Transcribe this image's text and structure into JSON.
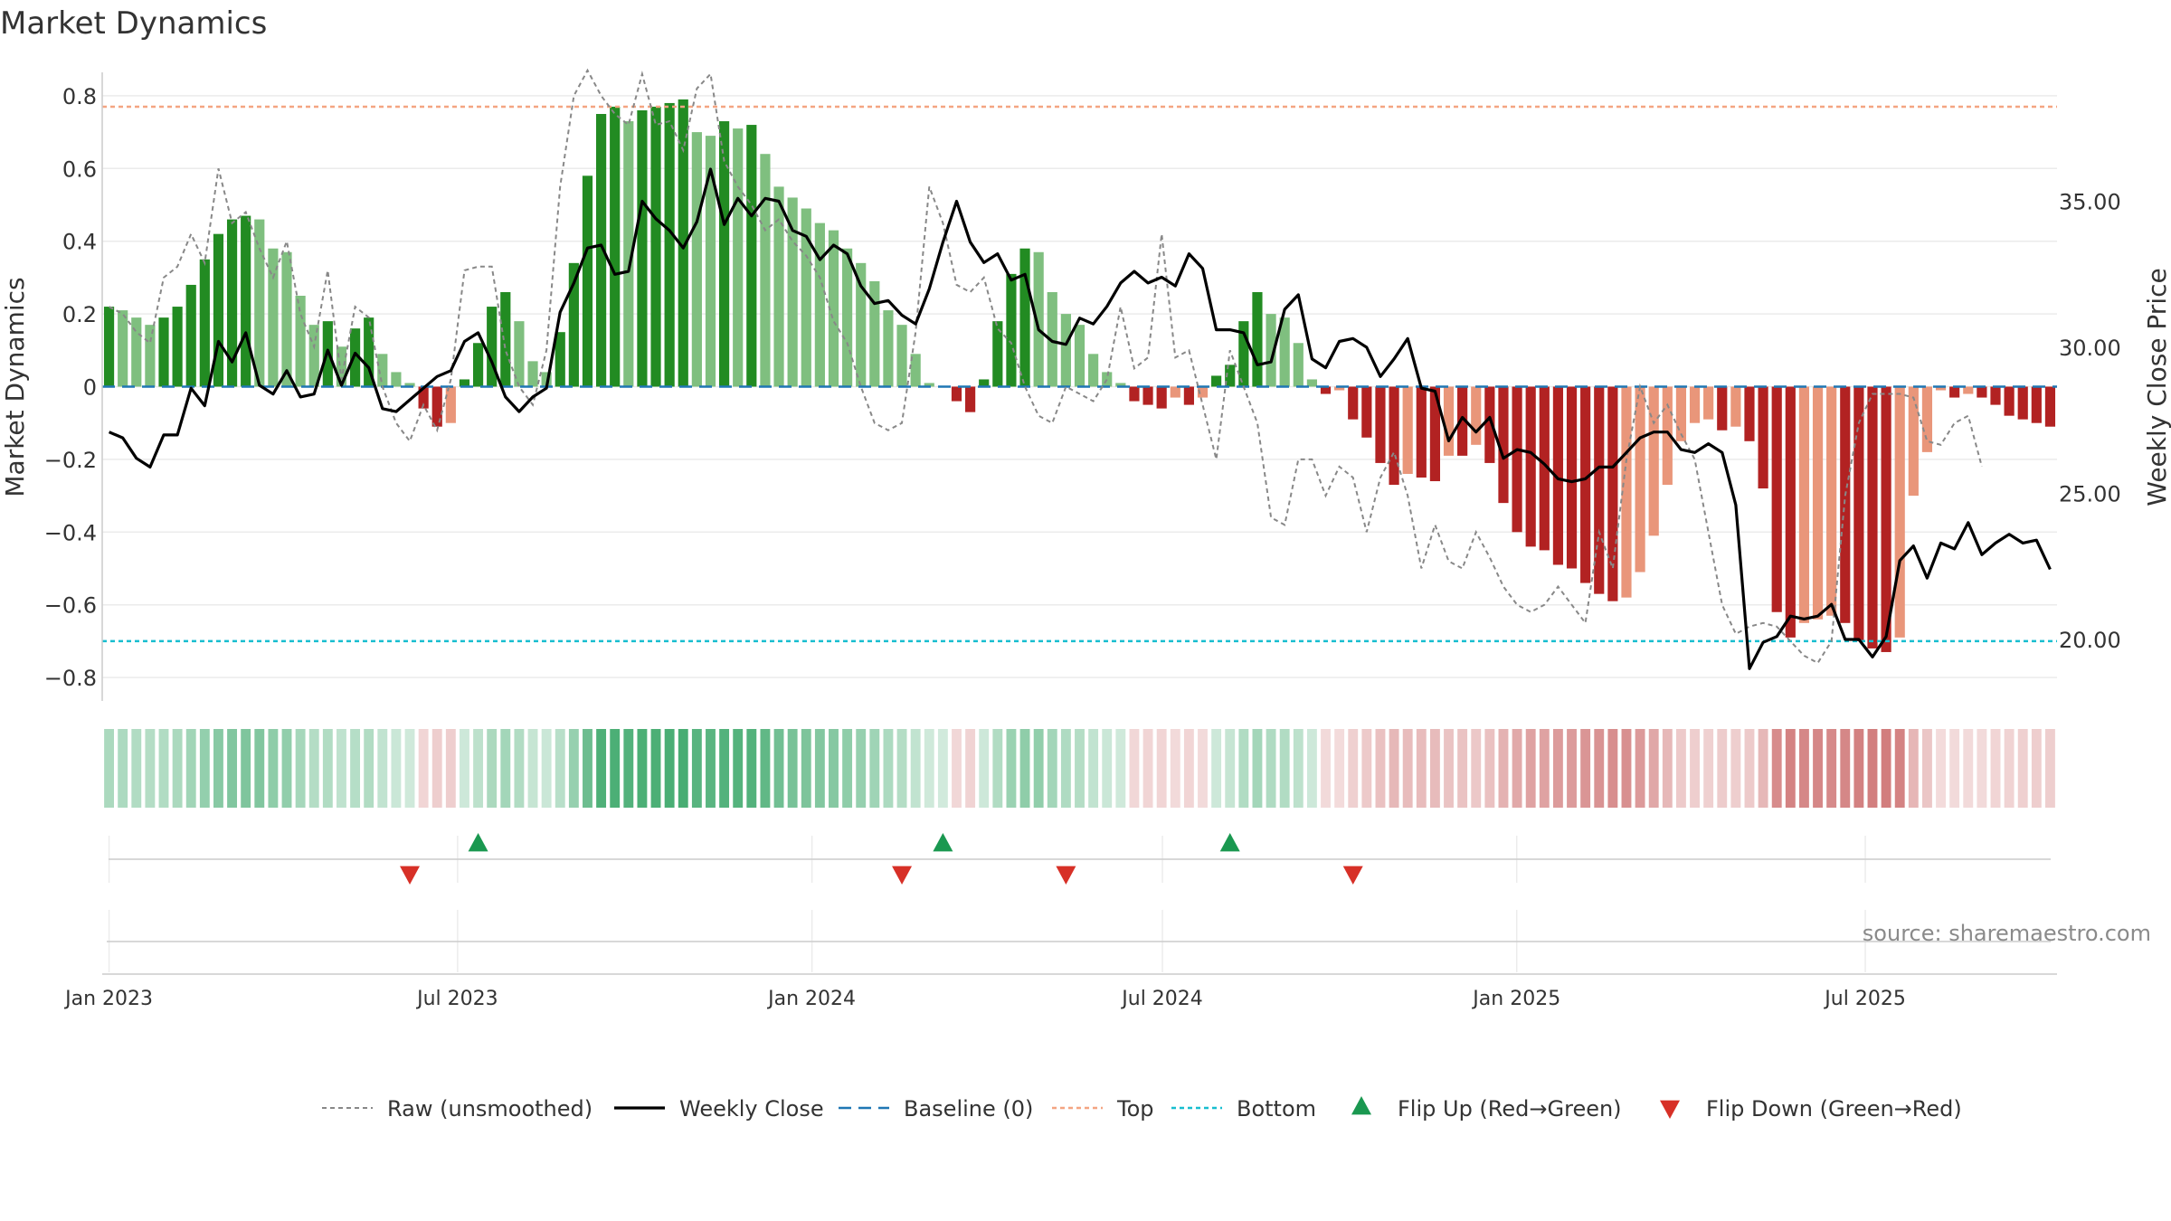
{
  "chart_data": {
    "type": "bar",
    "title": "Market Dynamics",
    "ylabel": "Market Dynamics",
    "y2label": "Weekly Close Price",
    "ylim": [
      -0.85,
      0.88
    ],
    "y2lim": [
      18.2,
      35.5
    ],
    "yticks": [
      "0.8",
      "0.6",
      "0.4",
      "0.2",
      "0",
      "−0.2",
      "−0.4",
      "−0.6",
      "−0.8"
    ],
    "y2ticks": [
      "35.00",
      "30.00",
      "25.00",
      "20.00"
    ],
    "xticks": [
      "Jan 2023",
      "Jul 2023",
      "Jan 2024",
      "Jul 2024",
      "Jan 2025",
      "Jul 2025"
    ],
    "top_level": 0.77,
    "bottom_level": -0.7,
    "bar_colors": {
      "strong_pos": "#228B22",
      "weak_pos": "#7FBF7F",
      "strong_neg": "#B22222",
      "weak_neg": "#E9967A"
    },
    "line_colors": {
      "raw": "#888888",
      "close": "#000000",
      "baseline": "#1f77b4",
      "top": "#f4a582",
      "bottom": "#17becf",
      "flip_up": "#1a9850",
      "flip_down": "#d73027"
    },
    "weeks": [
      "2023-01-01",
      "2025-10-05"
    ],
    "dynamics": [
      0.22,
      0.21,
      0.19,
      0.17,
      0.19,
      0.22,
      0.28,
      0.35,
      0.42,
      0.46,
      0.47,
      0.46,
      0.38,
      0.37,
      0.25,
      0.17,
      0.18,
      0.11,
      0.16,
      0.19,
      0.09,
      0.04,
      0.01,
      -0.06,
      -0.11,
      -0.1,
      0.02,
      0.12,
      0.22,
      0.26,
      0.18,
      0.07,
      0.04,
      0.15,
      0.34,
      0.58,
      0.75,
      0.77,
      0.73,
      0.76,
      0.77,
      0.78,
      0.79,
      0.7,
      0.69,
      0.73,
      0.71,
      0.72,
      0.64,
      0.55,
      0.52,
      0.49,
      0.45,
      0.43,
      0.38,
      0.34,
      0.29,
      0.21,
      0.17,
      0.09,
      0.01,
      0.0,
      -0.04,
      -0.07,
      0.02,
      0.18,
      0.31,
      0.38,
      0.37,
      0.26,
      0.2,
      0.17,
      0.09,
      0.04,
      0.01,
      -0.04,
      -0.05,
      -0.06,
      -0.03,
      -0.05,
      -0.03,
      0.03,
      0.06,
      0.18,
      0.26,
      0.2,
      0.19,
      0.12,
      0.02,
      -0.02,
      -0.01,
      -0.09,
      -0.14,
      -0.21,
      -0.27,
      -0.24,
      -0.25,
      -0.26,
      -0.19,
      -0.19,
      -0.16,
      -0.21,
      -0.32,
      -0.4,
      -0.44,
      -0.45,
      -0.49,
      -0.5,
      -0.54,
      -0.57,
      -0.59,
      -0.58,
      -0.51,
      -0.41,
      -0.27,
      -0.15,
      -0.1,
      -0.09,
      -0.12,
      -0.11,
      -0.15,
      -0.28,
      -0.62,
      -0.69,
      -0.65,
      -0.64,
      -0.63,
      -0.65,
      -0.7,
      -0.72,
      -0.73,
      -0.69,
      -0.3,
      -0.18,
      -0.01,
      -0.03,
      -0.02,
      -0.03,
      -0.05,
      -0.08,
      -0.09,
      -0.1,
      -0.11
    ],
    "raw": [
      0.22,
      0.2,
      0.15,
      0.12,
      0.3,
      0.33,
      0.42,
      0.34,
      0.6,
      0.45,
      0.48,
      0.38,
      0.3,
      0.4,
      0.2,
      0.11,
      0.32,
      0.02,
      0.22,
      0.19,
      0.0,
      -0.1,
      -0.15,
      -0.05,
      -0.12,
      0.02,
      0.32,
      0.33,
      0.33,
      0.1,
      0.0,
      -0.05,
      0.1,
      0.55,
      0.8,
      0.87,
      0.8,
      0.75,
      0.72,
      0.86,
      0.72,
      0.73,
      0.65,
      0.82,
      0.86,
      0.62,
      0.55,
      0.5,
      0.43,
      0.46,
      0.4,
      0.36,
      0.3,
      0.18,
      0.12,
      0.0,
      -0.1,
      -0.12,
      -0.1,
      0.15,
      0.55,
      0.45,
      0.28,
      0.26,
      0.3,
      0.16,
      0.12,
      0.0,
      -0.08,
      -0.1,
      0.0,
      -0.02,
      -0.04,
      0.02,
      0.22,
      0.05,
      0.08,
      0.42,
      0.08,
      0.1,
      -0.05,
      -0.2,
      0.1,
      0.0,
      -0.1,
      -0.36,
      -0.38,
      -0.2,
      -0.2,
      -0.3,
      -0.22,
      -0.25,
      -0.4,
      -0.25,
      -0.18,
      -0.3,
      -0.5,
      -0.38,
      -0.48,
      -0.5,
      -0.4,
      -0.47,
      -0.55,
      -0.6,
      -0.62,
      -0.6,
      -0.55,
      -0.6,
      -0.65,
      -0.4,
      -0.5,
      -0.2,
      0.0,
      -0.1,
      -0.05,
      -0.13,
      -0.2,
      -0.4,
      -0.6,
      -0.68,
      -0.66,
      -0.65,
      -0.66,
      -0.7,
      -0.74,
      -0.76,
      -0.7,
      -0.3,
      -0.1,
      -0.02,
      -0.02,
      -0.02,
      -0.03,
      -0.15,
      -0.16,
      -0.1,
      -0.08,
      -0.22
    ],
    "close": [
      27.1,
      26.9,
      26.2,
      25.9,
      27.0,
      27.0,
      28.6,
      28.0,
      30.2,
      29.5,
      30.5,
      28.7,
      28.4,
      29.2,
      28.3,
      28.4,
      29.9,
      28.7,
      29.8,
      29.3,
      27.9,
      27.8,
      28.2,
      28.6,
      29.0,
      29.2,
      30.2,
      30.5,
      29.5,
      28.3,
      27.8,
      28.3,
      28.6,
      31.2,
      32.2,
      33.4,
      33.5,
      32.5,
      32.6,
      35.0,
      34.4,
      34.0,
      33.4,
      34.3,
      36.1,
      34.2,
      35.1,
      34.5,
      35.1,
      35.0,
      34.0,
      33.8,
      33.0,
      33.5,
      33.2,
      32.1,
      31.5,
      31.6,
      31.1,
      30.8,
      32.0,
      33.6,
      35.0,
      33.6,
      32.9,
      33.2,
      32.3,
      32.5,
      30.6,
      30.2,
      30.1,
      31.0,
      30.8,
      31.4,
      32.2,
      32.6,
      32.2,
      32.4,
      32.1,
      33.2,
      32.7,
      30.6,
      30.6,
      30.5,
      29.4,
      29.5,
      31.3,
      31.8,
      29.6,
      29.3,
      30.2,
      30.3,
      30.0,
      29.0,
      29.6,
      30.3,
      28.6,
      28.5,
      26.8,
      27.6,
      27.1,
      27.6,
      26.2,
      26.5,
      26.4,
      26.0,
      25.5,
      25.4,
      25.5,
      25.9,
      25.9,
      26.4,
      26.9,
      27.1,
      27.1,
      26.5,
      26.4,
      26.7,
      26.4,
      24.6,
      19.0,
      19.9,
      20.1,
      20.8,
      20.7,
      20.8,
      21.2,
      20.0,
      20.0,
      19.4,
      20.1,
      22.7,
      23.2,
      22.1,
      23.3,
      23.1,
      24.0,
      22.9,
      23.3,
      23.6,
      23.3,
      23.4,
      22.4
    ],
    "flips_up": [
      27,
      61,
      82
    ],
    "flips_down": [
      22,
      58,
      70,
      91
    ],
    "source": "source: sharemaestro.com",
    "legend": [
      {
        "key": "raw",
        "label": "Raw (unsmoothed)"
      },
      {
        "key": "close",
        "label": "Weekly Close"
      },
      {
        "key": "baseline",
        "label": "Baseline (0)"
      },
      {
        "key": "top",
        "label": "Top"
      },
      {
        "key": "bottom",
        "label": "Bottom"
      },
      {
        "key": "flip_up",
        "label": "Flip Up (Red→Green)"
      },
      {
        "key": "flip_down",
        "label": "Flip Down (Green→Red)"
      }
    ]
  }
}
